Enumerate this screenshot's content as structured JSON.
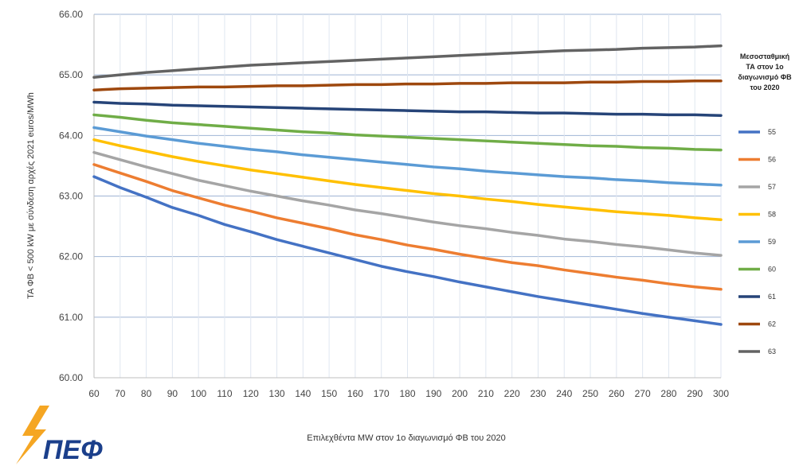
{
  "chart_data": {
    "type": "line",
    "title": "",
    "xlabel": "Επιλεχθέντα MW στον 1ο διαγωνισμό ΦΒ του 2020",
    "ylabel": "ΤΑ ΦΒ < 500 kW με σύνδεση αρχές 2021 euros/MWh",
    "xlim": [
      60,
      300
    ],
    "ylim": [
      60,
      66
    ],
    "x": [
      60,
      70,
      80,
      90,
      100,
      110,
      120,
      130,
      140,
      150,
      160,
      170,
      180,
      190,
      200,
      210,
      220,
      230,
      240,
      250,
      260,
      270,
      280,
      290,
      300
    ],
    "x_tick_labels": [
      "60",
      "70",
      "80",
      "90",
      "100",
      "110",
      "120",
      "130",
      "140",
      "150",
      "160",
      "170",
      "180",
      "190",
      "200",
      "210",
      "220",
      "230",
      "240",
      "250",
      "260",
      "270",
      "280",
      "290",
      "300"
    ],
    "y_tick_labels": [
      "60.00",
      "61.00",
      "62.00",
      "63.00",
      "64.00",
      "65.00",
      "66.00"
    ],
    "y_ticks": [
      60,
      61,
      62,
      63,
      64,
      65,
      66
    ],
    "grid": true,
    "legend_placement": "right",
    "legend_title": "Μεσοσταθμική ΤΑ στον 1ο διαγωνισμό ΦΒ του 2020",
    "series": [
      {
        "name": "55",
        "color": "#4472c4",
        "values": [
          63.32,
          63.14,
          62.98,
          62.81,
          62.68,
          62.53,
          62.41,
          62.28,
          62.17,
          62.06,
          61.95,
          61.84,
          61.75,
          61.67,
          61.58,
          61.5,
          61.42,
          61.34,
          61.27,
          61.2,
          61.13,
          61.06,
          61.0,
          60.94,
          60.88
        ]
      },
      {
        "name": "56",
        "color": "#ed7d31",
        "values": [
          63.52,
          63.38,
          63.24,
          63.09,
          62.97,
          62.85,
          62.75,
          62.64,
          62.55,
          62.46,
          62.36,
          62.28,
          62.19,
          62.12,
          62.04,
          61.97,
          61.9,
          61.85,
          61.78,
          61.72,
          61.66,
          61.61,
          61.55,
          61.5,
          61.46
        ]
      },
      {
        "name": "57",
        "color": "#a5a5a5",
        "values": [
          63.72,
          63.6,
          63.48,
          63.37,
          63.26,
          63.17,
          63.08,
          63.0,
          62.92,
          62.85,
          62.77,
          62.71,
          62.64,
          62.57,
          62.51,
          62.46,
          62.4,
          62.35,
          62.29,
          62.25,
          62.2,
          62.16,
          62.11,
          62.06,
          62.02
        ]
      },
      {
        "name": "58",
        "color": "#ffc000",
        "values": [
          63.93,
          63.83,
          63.74,
          63.65,
          63.57,
          63.5,
          63.43,
          63.37,
          63.31,
          63.25,
          63.19,
          63.14,
          63.09,
          63.04,
          63.0,
          62.95,
          62.91,
          62.86,
          62.82,
          62.78,
          62.74,
          62.71,
          62.68,
          62.64,
          62.61
        ]
      },
      {
        "name": "59",
        "color": "#5b9bd5",
        "values": [
          64.13,
          64.06,
          63.99,
          63.93,
          63.87,
          63.82,
          63.77,
          63.73,
          63.68,
          63.64,
          63.6,
          63.56,
          63.52,
          63.48,
          63.45,
          63.41,
          63.38,
          63.35,
          63.32,
          63.3,
          63.27,
          63.25,
          63.22,
          63.2,
          63.18
        ]
      },
      {
        "name": "60",
        "color": "#70ad47",
        "values": [
          64.34,
          64.3,
          64.25,
          64.21,
          64.18,
          64.15,
          64.12,
          64.09,
          64.06,
          64.04,
          64.01,
          63.99,
          63.97,
          63.95,
          63.93,
          63.91,
          63.89,
          63.87,
          63.85,
          63.83,
          63.82,
          63.8,
          63.79,
          63.77,
          63.76
        ]
      },
      {
        "name": "61",
        "color": "#264478",
        "values": [
          64.55,
          64.53,
          64.52,
          64.5,
          64.49,
          64.48,
          64.47,
          64.46,
          64.45,
          64.44,
          64.43,
          64.42,
          64.41,
          64.4,
          64.39,
          64.39,
          64.38,
          64.37,
          64.37,
          64.36,
          64.35,
          64.35,
          64.34,
          64.34,
          64.33
        ]
      },
      {
        "name": "62",
        "color": "#9e480e",
        "values": [
          64.75,
          64.77,
          64.78,
          64.79,
          64.8,
          64.8,
          64.81,
          64.82,
          64.82,
          64.83,
          64.84,
          64.84,
          64.85,
          64.85,
          64.86,
          64.86,
          64.87,
          64.87,
          64.87,
          64.88,
          64.88,
          64.89,
          64.89,
          64.9,
          64.9
        ]
      },
      {
        "name": "63",
        "color": "#636363",
        "values": [
          64.96,
          65.0,
          65.04,
          65.07,
          65.1,
          65.13,
          65.16,
          65.18,
          65.2,
          65.22,
          65.24,
          65.26,
          65.28,
          65.3,
          65.32,
          65.34,
          65.36,
          65.38,
          65.4,
          65.41,
          65.42,
          65.44,
          65.45,
          65.46,
          65.48
        ]
      }
    ]
  },
  "logo": {
    "text": "ΠΕΦ",
    "bolt_color": "#f5a623",
    "text_color": "#1b3f8b"
  }
}
